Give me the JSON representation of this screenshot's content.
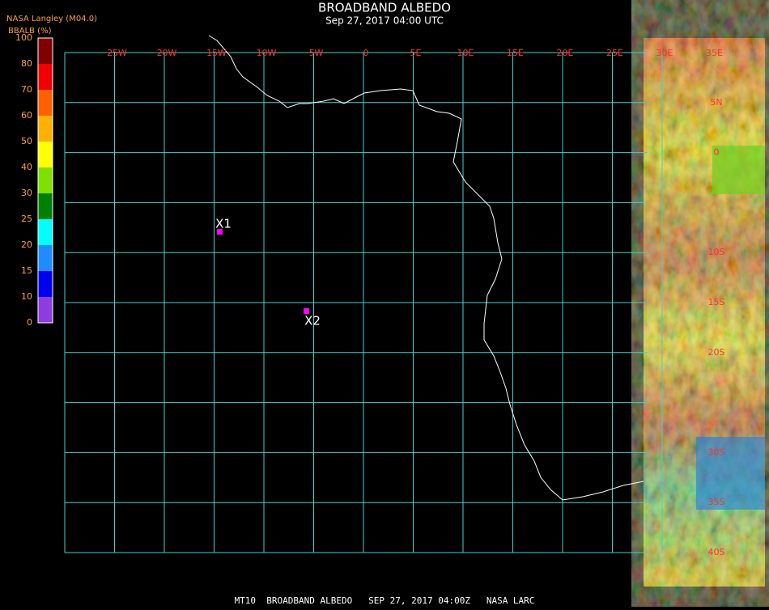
{
  "header": {
    "title": "BROADBAND ALBEDO",
    "subtitle": "Sep 27, 2017 04:00 UTC",
    "source": "NASA Langley (M04.0)",
    "legend_title": "BBALB (%)"
  },
  "colorbar": {
    "ticks": [
      0,
      10,
      15,
      20,
      25,
      30,
      40,
      50,
      60,
      70,
      80,
      100
    ],
    "colors": [
      "#8c3ce0",
      "#0000f0",
      "#1e8cff",
      "#00ffff",
      "#008000",
      "#80e000",
      "#ffff00",
      "#ffb000",
      "#ff6000",
      "#f00000",
      "#800000"
    ]
  },
  "map": {
    "lon_labels": [
      "25W",
      "20W",
      "15W",
      "10W",
      "5W",
      "0",
      "5E",
      "10E",
      "15E",
      "20E",
      "25E",
      "30E",
      "35E"
    ],
    "lat_labels": [
      "5N",
      "0",
      null,
      "10S",
      "15S",
      "20S",
      null,
      "30S",
      "35S",
      "40S"
    ],
    "markers": [
      {
        "label": "X1"
      },
      {
        "label": "X2"
      }
    ]
  },
  "footer": "MT10  BROADBAND ALBEDO   SEP 27, 2017 04:00Z   NASA LARC"
}
